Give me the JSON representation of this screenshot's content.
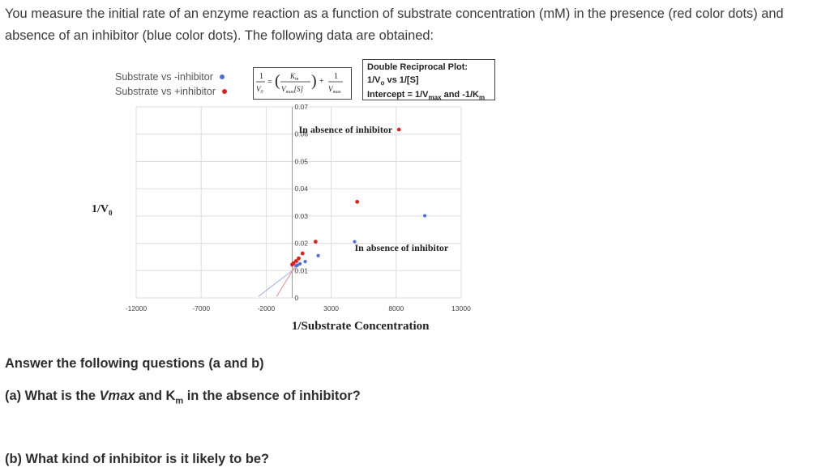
{
  "question": {
    "intro": "You measure the initial rate of an enzyme reaction as a function of substrate concentration (mM) in the presence (red color dots) and absence of an inhibitor (blue color dots). The following data are obtained:",
    "answer_prompt": "Answer the following questions (a and b)",
    "part_a_prefix": "(a) What is the ",
    "part_a_vmax": "Vmax",
    "part_a_mid": " and K",
    "part_a_sub": "m",
    "part_a_suffix": " in the absence of inhibitor?",
    "part_b": "(b) What kind of inhibitor is it likely to be?"
  },
  "legend": {
    "blue_label": "Substrate vs -inhibitor",
    "red_label": "Substrate vs +inhibitor",
    "blue_color": "#4a6fe3",
    "red_color": "#e02020"
  },
  "equation": {
    "lhs_num": "1",
    "lhs_den": "V",
    "lhs_den_sub": "0",
    "km": "K",
    "km_sub": "m",
    "vmax_s": "V",
    "vmax_s_sub": "max",
    "s": "[S]",
    "plus": "+",
    "one": "1",
    "vmax": "V",
    "vmax_sub": "max"
  },
  "double_reciprocal": {
    "title": "Double Reciprocal Plot:",
    "line2_a": "1/V",
    "line2_sub": "o",
    "line2_b": "vs  1/[S]",
    "line3_a": "Intercept = 1/V",
    "line3_sub": "max",
    "line3_b": " and -1/K",
    "line3_sub2": "m"
  },
  "chart_data": {
    "type": "scatter",
    "xlabel": "1/Substrate Concentration",
    "ylabel": "1/V",
    "ylabel_sub": "0",
    "xlim": [
      -12000,
      13000
    ],
    "ylim": [
      0,
      0.07
    ],
    "x_ticks": [
      -12000,
      -7000,
      -2000,
      3000,
      8000,
      13000
    ],
    "x_tick_labels": [
      "-12000",
      "-7000",
      "-2000",
      "3000",
      "8000",
      "13000"
    ],
    "y_ticks": [
      0,
      0.01,
      0.02,
      0.03,
      0.04,
      0.05,
      0.06,
      0.07
    ],
    "y_tick_labels": [
      "0",
      "0.01",
      "0.02",
      "0.03",
      "0.04",
      "0.05",
      "0.06",
      "0.07"
    ],
    "grid": true,
    "annotations": [
      {
        "text": "In absence of inhibitor",
        "x": 500,
        "y": 0.0605,
        "dot": "red"
      },
      {
        "text": "In absence of inhibitor",
        "x": 4800,
        "y": 0.0172,
        "dot": "none"
      }
    ],
    "series": [
      {
        "color": "blue",
        "points": [
          [
            10200,
            0.0301
          ],
          [
            4800,
            0.0206
          ],
          [
            2000,
            0.0155
          ],
          [
            1000,
            0.0133
          ],
          [
            600,
            0.0125
          ],
          [
            400,
            0.012
          ],
          [
            300,
            0.0118
          ]
        ]
      },
      {
        "color": "red",
        "points": [
          [
            5000,
            0.0352
          ],
          [
            1800,
            0.0206
          ],
          [
            800,
            0.0163
          ],
          [
            500,
            0.0145
          ],
          [
            300,
            0.0135
          ],
          [
            100,
            0.0127
          ],
          [
            0,
            0.0122
          ]
        ]
      }
    ],
    "extrapolation_lines": [
      {
        "color": "blue",
        "from": [
          -2600,
          0.0005
        ],
        "to": [
          600,
          0.0122
        ]
      },
      {
        "color": "red",
        "from": [
          -1200,
          0.0005
        ],
        "to": [
          600,
          0.0145
        ]
      }
    ]
  }
}
